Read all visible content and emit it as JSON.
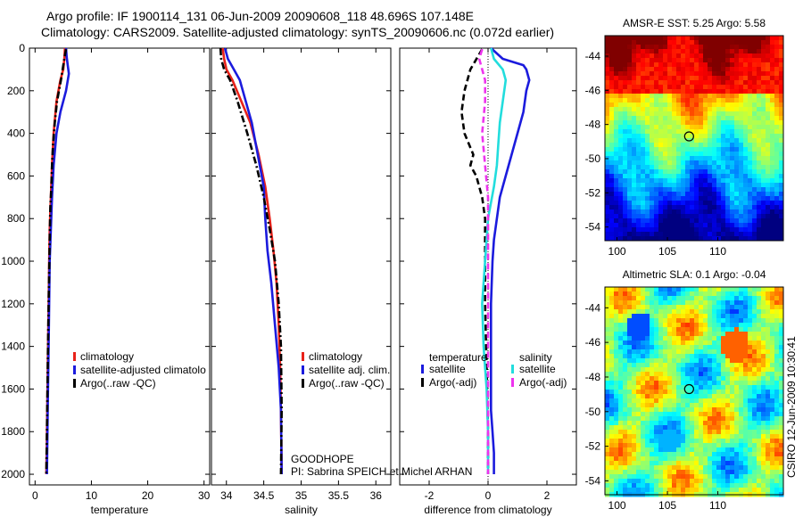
{
  "header": {
    "line1": "Argo profile: IF 1900114_131 06-Jun-2009 20090608_118 48.696S 107.148E",
    "line2": "Climatology: CARS2009. Satellite-adjusted climatology: synTS_20090606.nc (0.072d earlier)"
  },
  "stamp": "CSIRO 12-Jun-2009 10:30:41",
  "colors": {
    "red": "#e8221a",
    "blue": "#1b1bdd",
    "black": "#000000",
    "cyan": "#22dddd",
    "magenta": "#ee33ee"
  },
  "chart_data": [
    {
      "type": "line",
      "xlabel": "temperature",
      "ylabel": "",
      "xlim": [
        -1,
        31
      ],
      "ylim": [
        2050,
        0
      ],
      "xticks": [
        "0",
        "10",
        "20",
        "30"
      ],
      "yticks": [
        "0",
        "200",
        "400",
        "600",
        "800",
        "1000",
        "1200",
        "1400",
        "1600",
        "1800",
        "2000"
      ],
      "legend": [
        "climatology",
        "satellite-adjusted climatolo",
        "Argo(..raw -QC)"
      ],
      "series": [
        {
          "name": "climatology",
          "color": "red",
          "style": "solid",
          "x": [
            5.3,
            5.2,
            5.0,
            4.5,
            3.8,
            3.3,
            3.0,
            2.8,
            2.6,
            2.5,
            2.4,
            2.3,
            2.2,
            2.1,
            2.0
          ],
          "y": [
            0,
            50,
            100,
            150,
            250,
            400,
            550,
            700,
            850,
            1000,
            1200,
            1400,
            1600,
            1800,
            2000
          ]
        },
        {
          "name": "satellite-adjusted climatolo",
          "color": "blue",
          "style": "solid",
          "x": [
            5.5,
            5.6,
            5.8,
            6.0,
            5.5,
            4.5,
            3.8,
            3.3,
            3.0,
            2.8,
            2.6,
            2.5,
            2.4,
            2.3,
            2.2,
            2.1
          ],
          "y": [
            0,
            40,
            80,
            120,
            200,
            300,
            400,
            550,
            700,
            850,
            1000,
            1200,
            1400,
            1600,
            1800,
            2000
          ]
        },
        {
          "name": "Argo(..raw -QC)",
          "color": "black",
          "style": "dashdot",
          "x": [
            5.5,
            5.2,
            4.6,
            3.9,
            3.5,
            3.2,
            3.0,
            2.9,
            2.7,
            2.6,
            2.5,
            2.4,
            2.3,
            2.2,
            2.1,
            2.0
          ],
          "y": [
            5,
            50,
            150,
            250,
            350,
            450,
            550,
            650,
            750,
            900,
            1050,
            1200,
            1400,
            1600,
            1800,
            2000
          ]
        }
      ]
    },
    {
      "type": "line",
      "xlabel": "salinity",
      "ylabel": "",
      "xlim": [
        33.8,
        36.2
      ],
      "ylim": [
        2050,
        0
      ],
      "xticks": [
        "34",
        "34.5",
        "35",
        "35.5",
        "36"
      ],
      "legend": [
        "climatology",
        "satellite adj. clim.",
        "Argo(..raw -QC)"
      ],
      "annotations": [
        "GOODHOPE",
        "PI: Sabrina SPEICH et Michel ARHAN"
      ],
      "series": [
        {
          "name": "climatology",
          "color": "red",
          "style": "solid",
          "x": [
            33.95,
            33.97,
            34.0,
            34.08,
            34.2,
            34.32,
            34.43,
            34.52,
            34.58,
            34.63,
            34.67,
            34.7,
            34.72,
            34.73,
            34.74
          ],
          "y": [
            0,
            50,
            100,
            150,
            250,
            350,
            500,
            650,
            800,
            950,
            1100,
            1300,
            1500,
            1700,
            2000
          ]
        },
        {
          "name": "satellite adj. clim.",
          "color": "blue",
          "style": "solid",
          "x": [
            33.98,
            34.02,
            34.1,
            34.18,
            34.26,
            34.34,
            34.42,
            34.5,
            34.52,
            34.55,
            34.6,
            34.65,
            34.7,
            34.73,
            34.74
          ],
          "y": [
            0,
            50,
            100,
            150,
            250,
            350,
            500,
            650,
            800,
            950,
            1100,
            1300,
            1500,
            1700,
            2000
          ]
        },
        {
          "name": "Argo(..raw -QC)",
          "color": "black",
          "style": "dashdot",
          "x": [
            33.92,
            33.93,
            33.97,
            34.05,
            34.15,
            34.28,
            34.4,
            34.5,
            34.58,
            34.65,
            34.7,
            34.73,
            34.74,
            34.73
          ],
          "y": [
            0,
            50,
            100,
            150,
            250,
            400,
            550,
            700,
            850,
            1000,
            1200,
            1400,
            1700,
            2000
          ]
        }
      ]
    },
    {
      "type": "line",
      "xlabel": "difference from climatology",
      "ylabel": "",
      "xlim": [
        -3,
        3
      ],
      "ylim": [
        2050,
        0
      ],
      "xticks": [
        "-2",
        "0",
        "2"
      ],
      "legend_titles": [
        "temperature",
        "salinity"
      ],
      "legend": [
        "satellite",
        "Argo(-adj)",
        "satellite",
        "Argo(-adj)"
      ],
      "series": [
        {
          "name": "temperature satellite",
          "color": "blue",
          "style": "solid",
          "x": [
            0.1,
            0.5,
            1.2,
            1.3,
            1.4,
            1.3,
            1.2,
            1.0,
            0.8,
            0.6,
            0.4,
            0.3,
            0.2,
            0.15,
            0.1,
            0.1,
            0.1,
            0.1,
            0.15,
            0.2,
            0.2
          ],
          "y": [
            0,
            50,
            80,
            100,
            150,
            200,
            300,
            400,
            500,
            600,
            700,
            800,
            900,
            1000,
            1200,
            1400,
            1600,
            1700,
            1800,
            1900,
            2000
          ]
        },
        {
          "name": "temperature Argo(-adj)",
          "color": "black",
          "style": "dashed",
          "x": [
            -0.2,
            -0.6,
            -0.8,
            -0.9,
            -0.8,
            -0.5,
            -0.6,
            -0.4,
            -0.3,
            -0.2,
            -0.1,
            -0.1,
            -0.1,
            -0.05,
            0.0,
            0.0
          ],
          "y": [
            5,
            100,
            200,
            300,
            400,
            500,
            550,
            600,
            650,
            700,
            800,
            1000,
            1200,
            1500,
            1800,
            2000
          ]
        },
        {
          "name": "salinity satellite",
          "color": "cyan",
          "style": "solid",
          "x": [
            0.1,
            0.2,
            0.5,
            0.6,
            0.5,
            0.4,
            0.35,
            0.3,
            0.2,
            0.0,
            -0.1,
            -0.2,
            -0.15,
            -0.05,
            0.0,
            0.0
          ],
          "y": [
            0,
            50,
            100,
            150,
            250,
            350,
            450,
            550,
            650,
            800,
            1000,
            1200,
            1400,
            1600,
            1800,
            2000
          ]
        },
        {
          "name": "salinity Argo(-adj)",
          "color": "magenta",
          "style": "dashed",
          "x": [
            -0.2,
            -0.3,
            -0.2,
            -0.1,
            -0.1,
            -0.2,
            -0.1,
            0.0,
            0.0,
            0.0,
            0.0,
            0.0,
            0.0,
            0.0
          ],
          "y": [
            5,
            50,
            100,
            150,
            250,
            400,
            550,
            700,
            900,
            1100,
            1300,
            1500,
            1700,
            2000
          ]
        }
      ]
    },
    {
      "type": "heatmap",
      "title": "AMSR-E SST: 5.25 Argo: 5.58",
      "xticks": [
        "100",
        "105",
        "110"
      ],
      "yticks": [
        "-44",
        "-46",
        "-48",
        "-50",
        "-52",
        "-54"
      ],
      "xlim": [
        98.8,
        116.5
      ],
      "ylim": [
        -54.8,
        -42.8
      ],
      "marker": {
        "lon": 107.148,
        "lat": -48.696
      }
    },
    {
      "type": "heatmap",
      "title": "Altimetric SLA: 0.1 Argo: -0.04",
      "xticks": [
        "100",
        "105",
        "110"
      ],
      "yticks": [
        "-44",
        "-46",
        "-48",
        "-50",
        "-52",
        "-54"
      ],
      "xlim": [
        98.8,
        116.5
      ],
      "ylim": [
        -54.8,
        -42.8
      ],
      "marker": {
        "lon": 107.148,
        "lat": -48.696
      }
    }
  ]
}
